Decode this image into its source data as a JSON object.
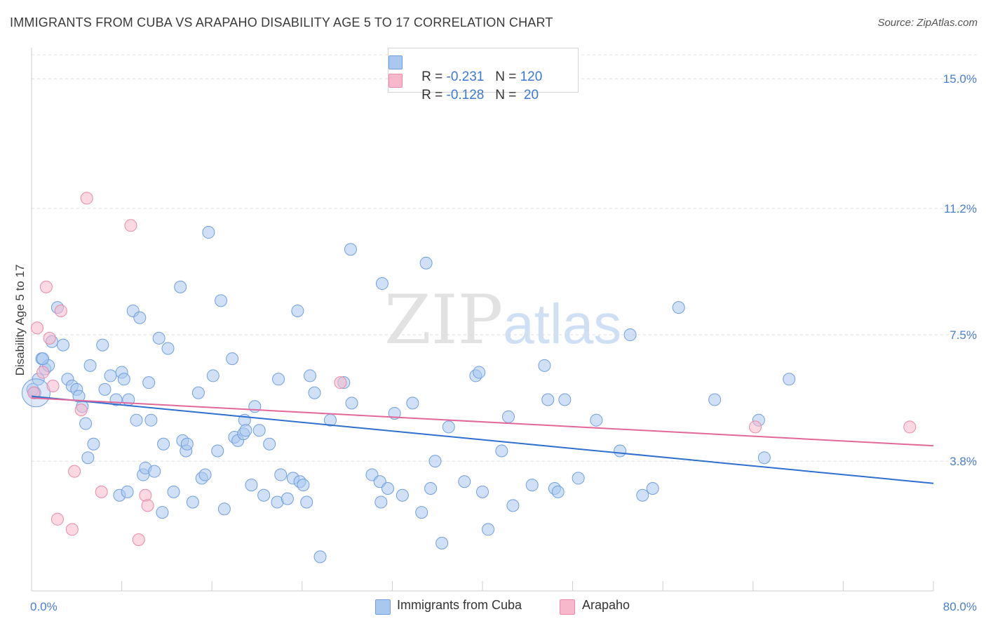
{
  "header": {
    "title": "IMMIGRANTS FROM CUBA VS ARAPAHO DISABILITY AGE 5 TO 17 CORRELATION CHART",
    "source": "Source: ZipAtlas.com"
  },
  "watermark": {
    "zip": "ZIP",
    "atlas": "atlas"
  },
  "legend": {
    "rows": [
      {
        "r_label": "R = ",
        "r_value": "-0.231",
        "n_label": "N = ",
        "n_value": "120",
        "color": "#a9c8f0"
      },
      {
        "r_label": "R = ",
        "r_value": "-0.128",
        "n_label": "N = ",
        "n_value": " 20",
        "color": "#f7b8cb"
      }
    ]
  },
  "bottom_legend": {
    "series1": "Immigrants from Cuba",
    "series2": "Arapaho"
  },
  "chart_data": {
    "type": "scatter",
    "title": "IMMIGRANTS FROM CUBA VS ARAPAHO DISABILITY AGE 5 TO 17 CORRELATION CHART",
    "xlabel": "",
    "ylabel": "Disability Age 5 to 17",
    "xlim": [
      0,
      80
    ],
    "ylim": [
      0,
      15.7
    ],
    "x_tick_labels": [
      "0.0%",
      "80.0%"
    ],
    "y_ticks": [
      3.8,
      7.5,
      11.2,
      15.0
    ],
    "y_tick_labels": [
      "3.8%",
      "7.5%",
      "11.2%",
      "15.0%"
    ],
    "grid": "horizontal dashed",
    "legend_position": "top-center",
    "series": [
      {
        "name": "Immigrants from Cuba",
        "color": "#a9c8f0",
        "stroke": "#6f9fe0",
        "trend": {
          "x": [
            0,
            80
          ],
          "y": [
            5.7,
            3.15
          ],
          "color": "#2f6fce"
        },
        "points": [
          [
            0.3,
            5.8
          ],
          [
            0.6,
            6.2
          ],
          [
            0.9,
            6.8
          ],
          [
            1.2,
            6.5
          ],
          [
            1.5,
            6.6
          ],
          [
            1.8,
            7.3
          ],
          [
            2.3,
            8.3
          ],
          [
            2.8,
            7.2
          ],
          [
            3.2,
            6.2
          ],
          [
            3.6,
            6.0
          ],
          [
            4.0,
            5.9
          ],
          [
            4.2,
            5.7
          ],
          [
            4.5,
            5.4
          ],
          [
            4.8,
            4.9
          ],
          [
            5.0,
            3.9
          ],
          [
            5.2,
            6.6
          ],
          [
            5.5,
            4.3
          ],
          [
            6.3,
            7.2
          ],
          [
            6.5,
            5.9
          ],
          [
            7.0,
            6.3
          ],
          [
            7.5,
            5.6
          ],
          [
            7.8,
            2.8
          ],
          [
            8.0,
            6.4
          ],
          [
            8.2,
            6.2
          ],
          [
            8.5,
            2.9
          ],
          [
            8.6,
            5.6
          ],
          [
            9.0,
            8.2
          ],
          [
            9.3,
            5.0
          ],
          [
            9.6,
            8.0
          ],
          [
            9.9,
            3.4
          ],
          [
            10.1,
            3.6
          ],
          [
            10.4,
            6.1
          ],
          [
            10.6,
            5.0
          ],
          [
            10.9,
            3.5
          ],
          [
            11.3,
            7.4
          ],
          [
            11.6,
            2.3
          ],
          [
            11.7,
            4.3
          ],
          [
            12.1,
            7.1
          ],
          [
            12.6,
            2.9
          ],
          [
            13.2,
            8.9
          ],
          [
            13.4,
            4.4
          ],
          [
            13.7,
            4.1
          ],
          [
            13.8,
            4.3
          ],
          [
            14.3,
            2.6
          ],
          [
            14.8,
            5.8
          ],
          [
            15.1,
            3.3
          ],
          [
            15.4,
            3.4
          ],
          [
            15.7,
            10.5
          ],
          [
            16.1,
            6.3
          ],
          [
            16.5,
            4.1
          ],
          [
            16.8,
            8.5
          ],
          [
            17.1,
            2.4
          ],
          [
            17.8,
            6.8
          ],
          [
            18.0,
            4.5
          ],
          [
            18.3,
            4.4
          ],
          [
            18.8,
            4.6
          ],
          [
            18.9,
            5.0
          ],
          [
            19.0,
            4.7
          ],
          [
            19.5,
            3.1
          ],
          [
            19.8,
            5.4
          ],
          [
            20.2,
            4.7
          ],
          [
            20.6,
            2.8
          ],
          [
            21.1,
            4.3
          ],
          [
            21.8,
            2.6
          ],
          [
            21.9,
            6.2
          ],
          [
            22.7,
            2.7
          ],
          [
            23.2,
            3.3
          ],
          [
            23.6,
            8.2
          ],
          [
            23.8,
            3.2
          ],
          [
            24.1,
            3.1
          ],
          [
            24.4,
            2.6
          ],
          [
            24.7,
            6.3
          ],
          [
            25.1,
            5.8
          ],
          [
            25.6,
            1.0
          ],
          [
            26.5,
            5.0
          ],
          [
            27.7,
            6.1
          ],
          [
            28.3,
            10.0
          ],
          [
            28.4,
            5.5
          ],
          [
            30.2,
            3.4
          ],
          [
            30.9,
            3.2
          ],
          [
            31.0,
            2.6
          ],
          [
            31.1,
            9.0
          ],
          [
            31.6,
            3.0
          ],
          [
            32.2,
            5.2
          ],
          [
            32.9,
            2.8
          ],
          [
            33.8,
            5.5
          ],
          [
            34.6,
            2.3
          ],
          [
            35.0,
            9.6
          ],
          [
            35.4,
            3.0
          ],
          [
            35.8,
            3.8
          ],
          [
            36.4,
            1.4
          ],
          [
            37.0,
            4.8
          ],
          [
            38.4,
            3.2
          ],
          [
            39.4,
            6.3
          ],
          [
            39.7,
            6.4
          ],
          [
            40.0,
            2.9
          ],
          [
            40.5,
            1.8
          ],
          [
            41.7,
            4.1
          ],
          [
            42.3,
            5.1
          ],
          [
            42.7,
            2.5
          ],
          [
            44.4,
            3.1
          ],
          [
            45.5,
            6.6
          ],
          [
            45.8,
            5.6
          ],
          [
            46.4,
            3.0
          ],
          [
            46.7,
            2.9
          ],
          [
            47.3,
            5.6
          ],
          [
            48.5,
            3.3
          ],
          [
            50.1,
            5.0
          ],
          [
            52.2,
            4.1
          ],
          [
            53.1,
            7.5
          ],
          [
            54.2,
            2.8
          ],
          [
            55.1,
            3.0
          ],
          [
            57.4,
            8.3
          ],
          [
            60.6,
            5.6
          ],
          [
            64.5,
            5.0
          ],
          [
            65.0,
            3.9
          ],
          [
            67.2,
            6.2
          ],
          [
            0.1,
            5.9
          ],
          [
            1.0,
            6.8
          ],
          [
            22.1,
            3.4
          ]
        ]
      },
      {
        "name": "Arapaho",
        "color": "#f7b8cb",
        "stroke": "#e88aa8",
        "trend": {
          "x": [
            0,
            80
          ],
          "y": [
            5.65,
            4.25
          ],
          "color": "#e0699a"
        },
        "points": [
          [
            0.2,
            5.8
          ],
          [
            0.5,
            7.7
          ],
          [
            1.0,
            6.4
          ],
          [
            1.3,
            8.9
          ],
          [
            1.6,
            7.4
          ],
          [
            1.9,
            6.0
          ],
          [
            2.3,
            2.1
          ],
          [
            2.6,
            8.2
          ],
          [
            3.6,
            1.8
          ],
          [
            3.8,
            3.5
          ],
          [
            4.4,
            5.3
          ],
          [
            4.9,
            11.5
          ],
          [
            6.2,
            2.9
          ],
          [
            8.8,
            10.7
          ],
          [
            9.5,
            1.5
          ],
          [
            10.1,
            2.8
          ],
          [
            10.3,
            2.5
          ],
          [
            27.4,
            6.1
          ],
          [
            64.2,
            4.8
          ],
          [
            77.9,
            4.8
          ]
        ]
      }
    ]
  }
}
